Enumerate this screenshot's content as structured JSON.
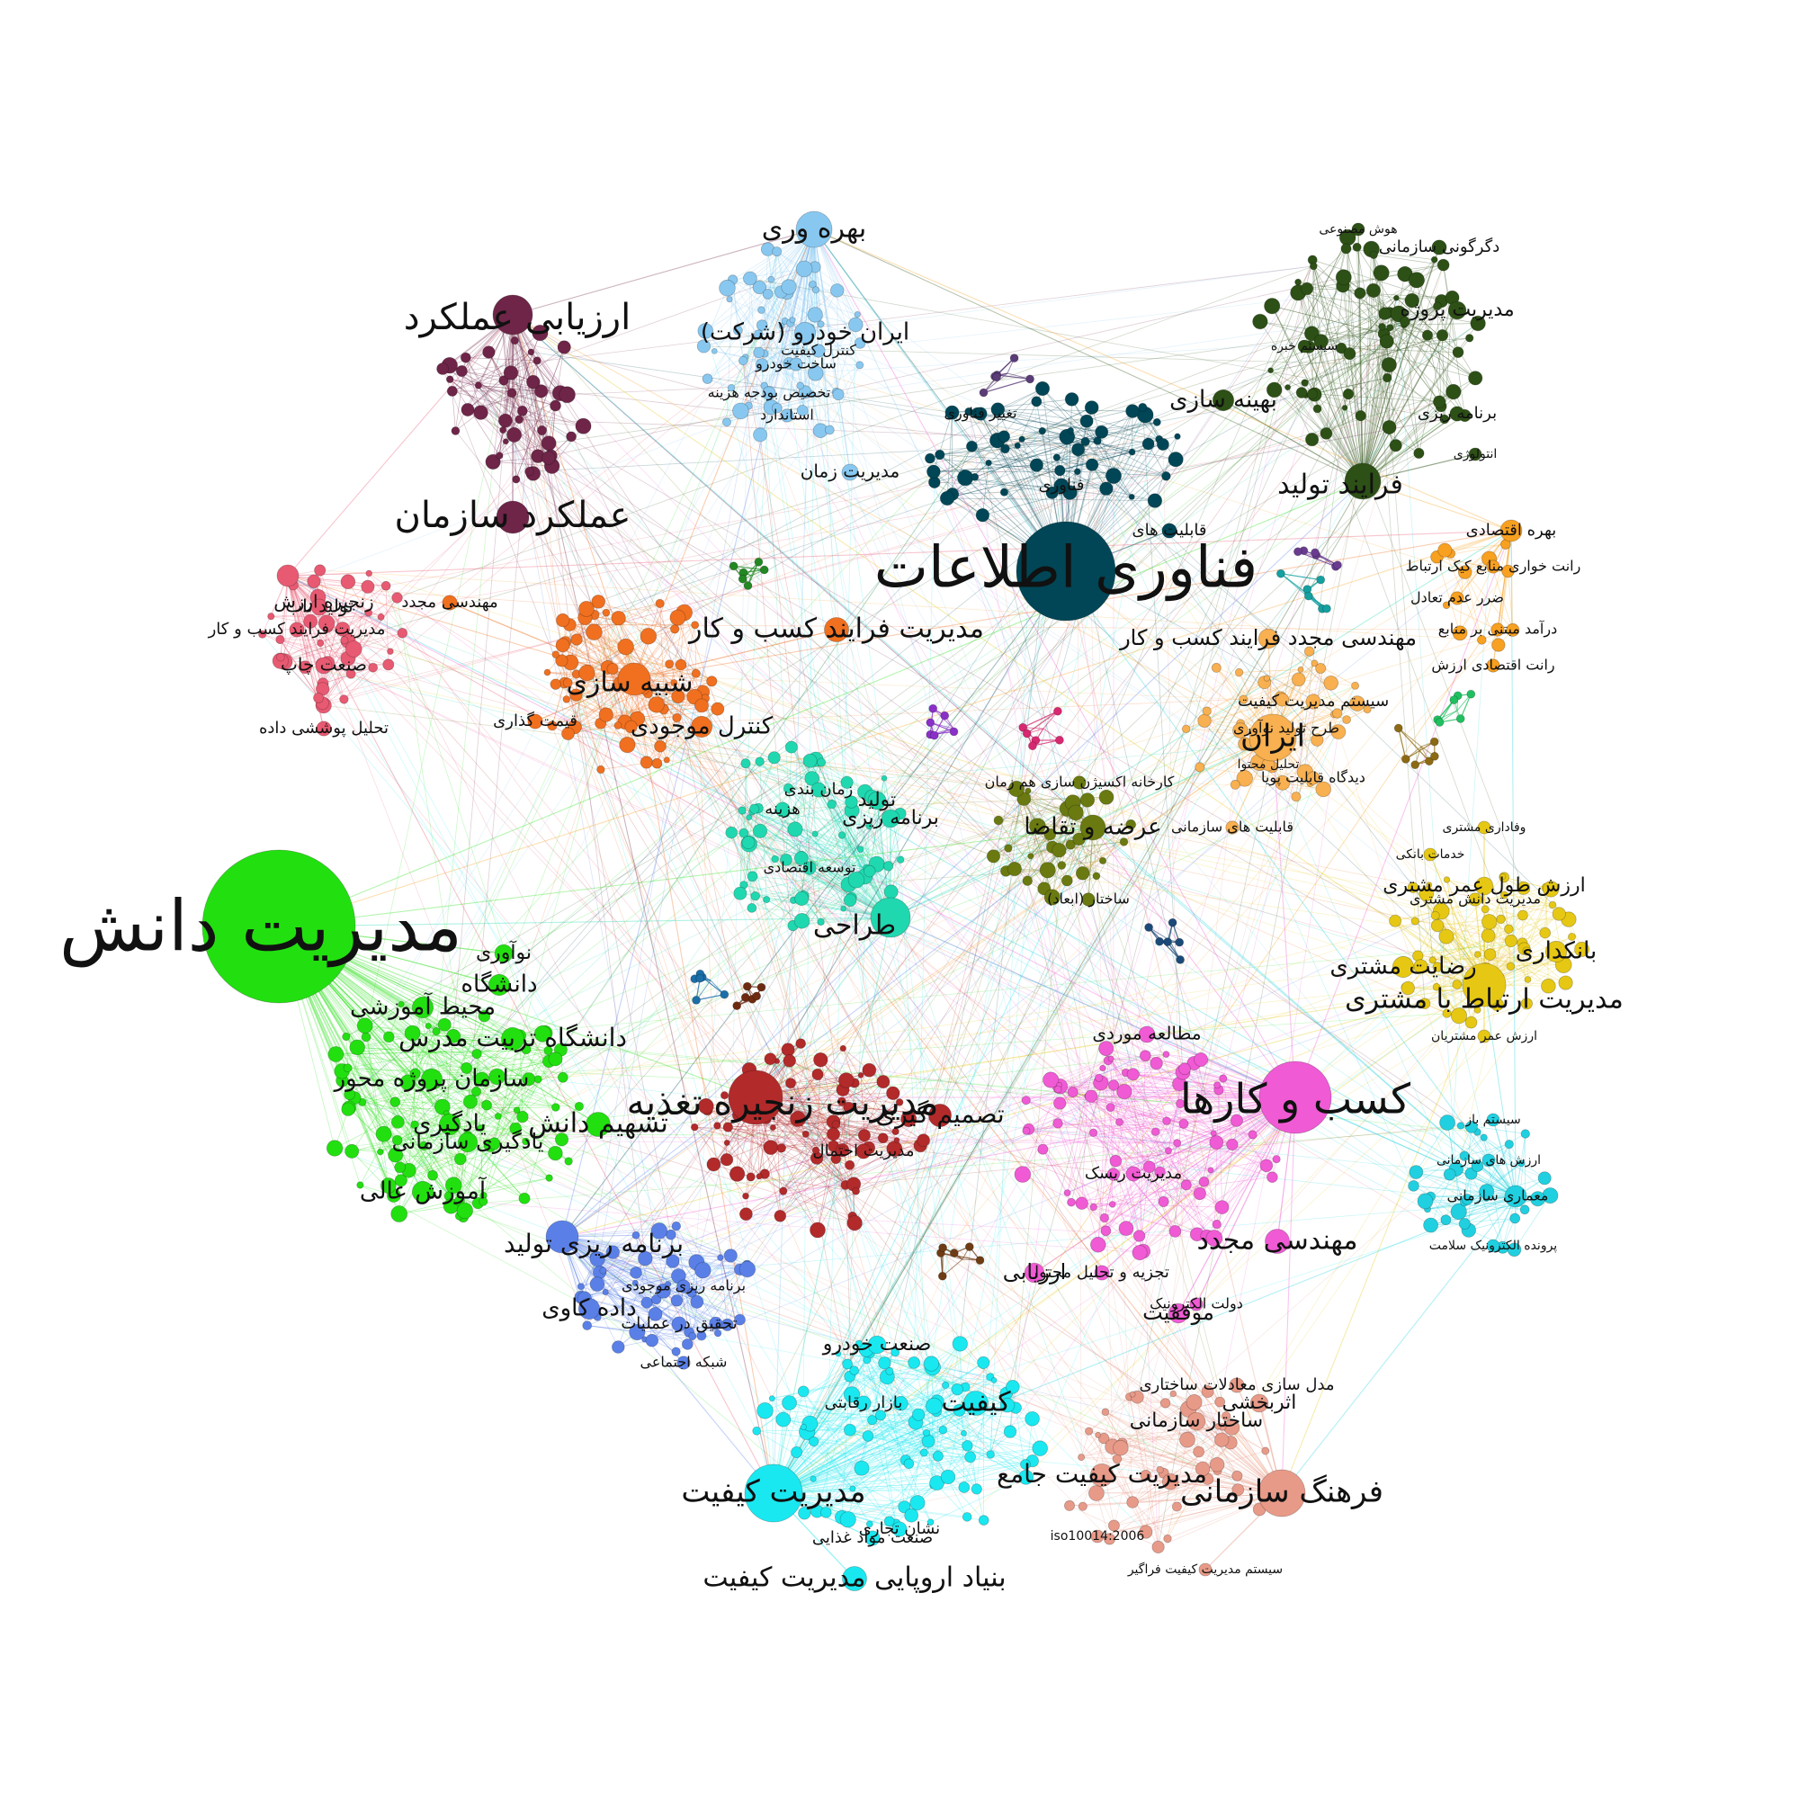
{
  "graph": {
    "clusters": [
      {
        "id": "km",
        "color": "#22e010",
        "label": "مدیریت دانش",
        "satellites": [
          "دانشگاه",
          "محیط آموزشی",
          "دانشگاه تربیت مدرس",
          "سازمان پروژه محور",
          "یادگیری",
          "تسهیم دانش",
          "آموزش عالی",
          "نوآوری",
          "یادگیری سازمانی"
        ]
      },
      {
        "id": "it",
        "color": "#004656",
        "label": "فناوری اطلاعات",
        "satellites": [
          "قابلیت های",
          "فناوری",
          "تغییر فناوری"
        ]
      },
      {
        "id": "business",
        "color": "#f05ad4",
        "label": "کسب و کارها",
        "satellites": [
          "مهندسی مجدد",
          "موفقیت",
          "ارزیابی",
          "مطالعه موردی",
          "تجزیه و تحلیل محتوا",
          "مدیریت ریسک",
          "دولت الکترونیک"
        ]
      },
      {
        "id": "sc",
        "color": "#b22a2a",
        "label": "مدیریت زنجیره تغذیه",
        "satellites": [
          "تصمیم گیری",
          "مدیریت احتمال"
        ]
      },
      {
        "id": "quality",
        "color": "#1ae8f0",
        "label": "مدیریت کیفیت",
        "satellites": [
          "کیفیت",
          "بنیاد اروپایی مدیریت کیفیت",
          "صنعت خودرو",
          "نشان تجاری",
          "صنعت مواد غذایی",
          "بازار رقابتی"
        ]
      },
      {
        "id": "culture",
        "color": "#e89a88",
        "label": "فرهنگ سازمانی",
        "satellites": [
          "مدیریت کیفیت جامع",
          "ساختار سازمانی",
          "اثربخشی",
          "مدل سازی معادلات ساختاری",
          "iso10014:2006",
          "سیستم مدیریت کیفیت فراگیر"
        ]
      },
      {
        "id": "crm",
        "color": "#e6c814",
        "label": "مدیریت ارتباط با مشتری",
        "satellites": [
          "رضایت مشتری",
          "بانکداری",
          "ارزش طول عمر مشتری",
          "مدیریت دانش مشتری",
          "ارزش عمر مشتریان",
          "خدمات بانکی",
          "وفاداری مشتری"
        ]
      },
      {
        "id": "iran",
        "color": "#f8b050",
        "label": "ایران",
        "satellites": [
          "مهندسی مجدد فرایند کسب و کار",
          "سیستم مدیریت کیفیت",
          "طرح تولید نوآوری",
          "قابلیت های سازمانی",
          "دیدگاه قابلیت پویا",
          "تحلیل محتوا"
        ]
      },
      {
        "id": "econ",
        "color": "#f8a020",
        "label": "بهره اقتصادی",
        "satellites": [
          "رانت خواری منابع کیک ارتباط",
          "ضرر عدم تعادل",
          "درآمد مبتنی بر منابع",
          "رانت اقتصادی ارزش"
        ]
      },
      {
        "id": "production",
        "color": "#2d5016",
        "label": "فرایند تولید",
        "satellites": [
          "بهینه سازی",
          "مدیریت پروژه",
          "برنامه ریزی",
          "دگرگونی سازمانی",
          "هوش مصنوعی",
          "انتولوژی",
          "سیستم خبره"
        ]
      },
      {
        "id": "productivity",
        "color": "#88c8f0",
        "label": "بهره وری",
        "satellites": [
          "ایران خودرو (شرکت)",
          "مدیریت زمان",
          "کنترل کیفیت",
          "ساخت خودرو",
          "استاندارد",
          "تخصیص بودجه هزینه"
        ]
      },
      {
        "id": "perf",
        "color": "#6e2548",
        "label": "ارزیابی عملکرد",
        "satellites": [
          "عملکرد سازمان"
        ]
      },
      {
        "id": "bpm",
        "color": "#f07020",
        "label": "شبیه سازی",
        "satellites": [
          "مدیریت فرایند کسب و کار",
          "کنترل موجودی",
          "قیمت گذاری",
          "مهندسی مجدد"
        ]
      },
      {
        "id": "design",
        "color": "#20d8b0",
        "label": "طراحی",
        "satellites": [
          "برنامه ریزی",
          "تولید",
          "زمان بندی",
          "هزینه",
          "توسعه اقتصادی"
        ]
      },
      {
        "id": "planning",
        "color": "#5a80e8",
        "label": "برنامه ریزی تولید",
        "satellites": [
          "داده کاوی",
          "تحقیق در عملیات",
          "شبکه اجتماعی",
          "برنامه ریزی موجودی"
        ]
      },
      {
        "id": "cost",
        "color": "#e85a72",
        "label": "زنجیره ارزش",
        "satellites": [
          "تولید ناب",
          "صنعت چاپ",
          "تحلیل پوششی داده",
          "مدیریت فرایند کسب و کار"
        ]
      },
      {
        "id": "supply",
        "color": "#6a7a10",
        "label": "عرضه و تقاضا",
        "satellites": [
          "کارخانه اکسیژن سازی هم زمان",
          "ساختار (ابعاد)"
        ]
      },
      {
        "id": "arch",
        "color": "#20d0e0",
        "label": "معماری سازمانی",
        "satellites": [
          "سیستم باز",
          "ارزش های سازمانی",
          "پرونده الکترونیک سلامت"
        ]
      }
    ]
  }
}
